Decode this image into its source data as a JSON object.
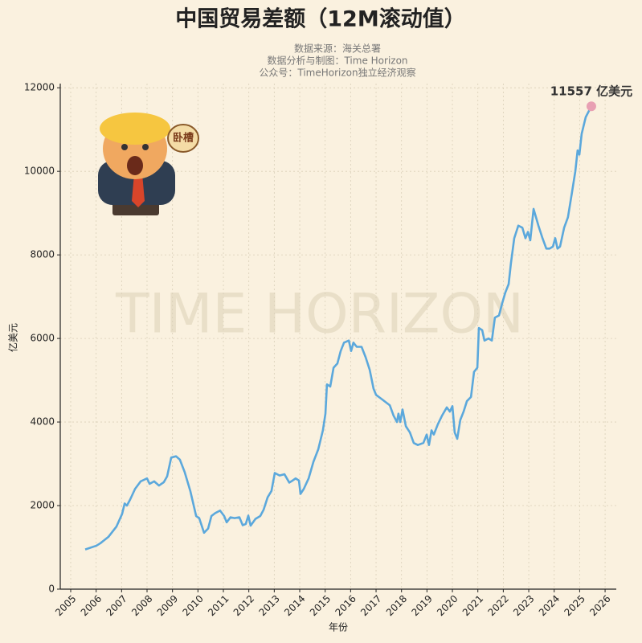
{
  "chart_data": {
    "type": "line",
    "title": "中国贸易差额（12M滚动值）",
    "subtitle": [
      "数据来源：海关总署",
      "数据分析与制图：Time Horizon",
      "公众号：TimeHorizon独立经济观察"
    ],
    "watermark": "TIME HORIZON",
    "sticker_text": "卧槽",
    "annotation": "11557 亿美元",
    "x_label": "年份",
    "y_label": "亿美元",
    "grid": true,
    "xlim": [
      2004.59,
      2026.44
    ],
    "ylim": [
      0,
      12100
    ],
    "xticks": [
      2005,
      2006,
      2007,
      2008,
      2009,
      2010,
      2011,
      2012,
      2013,
      2014,
      2015,
      2016,
      2017,
      2018,
      2019,
      2020,
      2021,
      2022,
      2023,
      2024,
      2025,
      2026
    ],
    "yticks": [
      0,
      2000,
      4000,
      6000,
      8000,
      10000,
      12000
    ],
    "x": [
      2005.57,
      2006.01,
      2006.17,
      2006.48,
      2006.8,
      2007.02,
      2007.12,
      2007.21,
      2007.34,
      2007.53,
      2007.75,
      2008.0,
      2008.1,
      2008.28,
      2008.47,
      2008.66,
      2008.79,
      2008.95,
      2009.14,
      2009.29,
      2009.48,
      2009.7,
      2009.93,
      2010.05,
      2010.24,
      2010.4,
      2010.53,
      2010.68,
      2010.87,
      2011.03,
      2011.13,
      2011.28,
      2011.44,
      2011.63,
      2011.76,
      2011.88,
      2011.98,
      2012.07,
      2012.26,
      2012.45,
      2012.58,
      2012.74,
      2012.89,
      2013.02,
      2013.21,
      2013.4,
      2013.59,
      2013.72,
      2013.84,
      2013.97,
      2014.03,
      2014.16,
      2014.35,
      2014.54,
      2014.73,
      2014.91,
      2015.01,
      2015.07,
      2015.2,
      2015.33,
      2015.48,
      2015.61,
      2015.74,
      2015.93,
      2016.02,
      2016.11,
      2016.24,
      2016.43,
      2016.59,
      2016.75,
      2016.9,
      2017.0,
      2017.22,
      2017.54,
      2017.69,
      2017.82,
      2017.88,
      2017.95,
      2018.04,
      2018.17,
      2018.33,
      2018.48,
      2018.64,
      2018.86,
      2018.99,
      2019.08,
      2019.18,
      2019.27,
      2019.43,
      2019.59,
      2019.78,
      2019.9,
      2020.0,
      2020.09,
      2020.19,
      2020.31,
      2020.44,
      2020.57,
      2020.73,
      2020.85,
      2020.98,
      2021.04,
      2021.17,
      2021.26,
      2021.42,
      2021.55,
      2021.67,
      2021.83,
      2021.96,
      2022.08,
      2022.21,
      2022.3,
      2022.43,
      2022.59,
      2022.75,
      2022.87,
      2022.97,
      2023.06,
      2023.19,
      2023.38,
      2023.54,
      2023.69,
      2023.82,
      2023.95,
      2024.04,
      2024.13,
      2024.23,
      2024.39,
      2024.54,
      2024.7,
      2024.83,
      2024.92,
      2024.99,
      2025.08,
      2025.24,
      2025.46
    ],
    "series": [
      {
        "name": "贸易差额",
        "color": "#5ba8dc",
        "marker_color": "#e8a0b3",
        "values": [
          950,
          1040,
          1100,
          1250,
          1500,
          1800,
          2050,
          2000,
          2150,
          2400,
          2580,
          2650,
          2520,
          2580,
          2480,
          2560,
          2700,
          3150,
          3180,
          3100,
          2800,
          2350,
          1750,
          1700,
          1350,
          1450,
          1750,
          1820,
          1880,
          1750,
          1600,
          1720,
          1700,
          1720,
          1530,
          1560,
          1760,
          1520,
          1680,
          1750,
          1900,
          2200,
          2350,
          2780,
          2720,
          2750,
          2550,
          2600,
          2650,
          2600,
          2280,
          2400,
          2650,
          3050,
          3350,
          3800,
          4200,
          4900,
          4850,
          5300,
          5400,
          5700,
          5900,
          5950,
          5700,
          5900,
          5800,
          5800,
          5550,
          5250,
          4800,
          4650,
          4550,
          4400,
          4150,
          4000,
          4200,
          4000,
          4300,
          3900,
          3750,
          3500,
          3450,
          3500,
          3700,
          3450,
          3800,
          3700,
          3950,
          4150,
          4350,
          4250,
          4380,
          3750,
          3600,
          4050,
          4250,
          4500,
          4600,
          5200,
          5300,
          6250,
          6200,
          5950,
          6000,
          5950,
          6500,
          6550,
          6850,
          7100,
          7300,
          7800,
          8400,
          8700,
          8650,
          8400,
          8550,
          8350,
          9100,
          8700,
          8400,
          8150,
          8150,
          8200,
          8400,
          8150,
          8200,
          8650,
          8900,
          9500,
          10000,
          10500,
          10400,
          10900,
          11300,
          11557
        ]
      }
    ]
  }
}
